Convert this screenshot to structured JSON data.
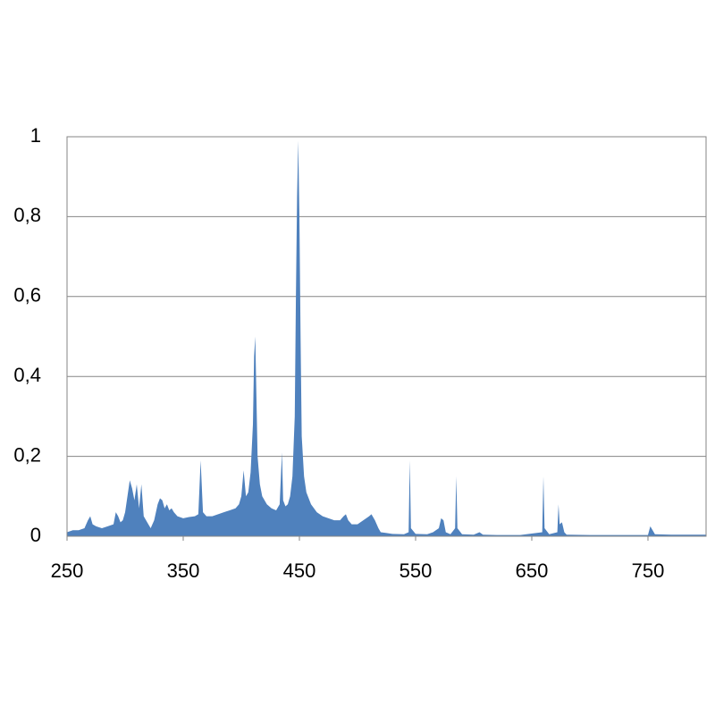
{
  "chart_data": {
    "type": "area",
    "x": [
      250,
      255,
      260,
      265,
      268,
      270,
      272,
      275,
      280,
      285,
      290,
      292,
      294,
      296,
      298,
      300,
      302,
      304,
      306,
      308,
      310,
      312,
      314,
      316,
      318,
      320,
      322,
      325,
      328,
      330,
      332,
      334,
      336,
      338,
      340,
      342,
      345,
      350,
      355,
      360,
      363,
      365,
      367,
      370,
      375,
      380,
      385,
      390,
      395,
      398,
      400,
      402,
      404,
      406,
      408,
      410,
      411,
      412,
      413,
      414,
      416,
      418,
      422,
      426,
      430,
      433,
      435,
      436,
      438,
      440,
      442,
      444,
      446,
      447,
      448,
      449,
      450,
      451,
      452,
      454,
      456,
      460,
      465,
      470,
      475,
      480,
      485,
      488,
      490,
      492,
      495,
      500,
      505,
      510,
      512,
      515,
      518,
      520,
      525,
      530,
      540,
      544,
      545,
      546,
      550,
      560,
      565,
      570,
      572,
      574,
      576,
      580,
      584,
      585,
      586,
      590,
      600,
      605,
      608,
      620,
      640,
      659,
      660,
      661,
      665,
      672,
      673,
      674,
      676,
      678,
      680,
      700,
      730,
      750,
      752,
      754,
      756,
      770,
      800
    ],
    "values": [
      0.01,
      0.015,
      0.015,
      0.02,
      0.04,
      0.05,
      0.03,
      0.025,
      0.02,
      0.025,
      0.03,
      0.06,
      0.05,
      0.035,
      0.04,
      0.06,
      0.1,
      0.14,
      0.12,
      0.09,
      0.13,
      0.07,
      0.13,
      0.05,
      0.04,
      0.03,
      0.02,
      0.04,
      0.08,
      0.095,
      0.09,
      0.07,
      0.08,
      0.065,
      0.07,
      0.06,
      0.05,
      0.045,
      0.048,
      0.05,
      0.055,
      0.19,
      0.06,
      0.05,
      0.05,
      0.055,
      0.06,
      0.065,
      0.07,
      0.08,
      0.1,
      0.165,
      0.1,
      0.11,
      0.16,
      0.28,
      0.45,
      0.5,
      0.35,
      0.2,
      0.13,
      0.1,
      0.08,
      0.07,
      0.065,
      0.08,
      0.21,
      0.09,
      0.075,
      0.08,
      0.1,
      0.15,
      0.3,
      0.6,
      0.85,
      0.99,
      0.8,
      0.5,
      0.25,
      0.15,
      0.11,
      0.08,
      0.06,
      0.05,
      0.045,
      0.04,
      0.04,
      0.05,
      0.055,
      0.04,
      0.03,
      0.03,
      0.04,
      0.05,
      0.055,
      0.04,
      0.02,
      0.01,
      0.008,
      0.006,
      0.005,
      0.01,
      0.19,
      0.02,
      0.006,
      0.005,
      0.01,
      0.02,
      0.045,
      0.04,
      0.01,
      0.005,
      0.02,
      0.15,
      0.02,
      0.005,
      0.004,
      0.01,
      0.004,
      0.003,
      0.003,
      0.01,
      0.15,
      0.02,
      0.005,
      0.01,
      0.08,
      0.03,
      0.035,
      0.01,
      0.004,
      0.003,
      0.003,
      0.003,
      0.025,
      0.015,
      0.005,
      0.004,
      0.004
    ],
    "color": "#4f81bd",
    "xlim": [
      250,
      800
    ],
    "xticks": [
      250,
      350,
      450,
      550,
      650,
      750
    ],
    "ylim": [
      0,
      1
    ],
    "yticks": [
      0,
      {
        "value": 0.2,
        "label": "0,2"
      },
      {
        "value": 0.4,
        "label": "0,4"
      },
      {
        "value": 0.6,
        "label": "0,6"
      },
      {
        "value": 0.8,
        "label": "0,8"
      },
      1
    ],
    "grid": true
  }
}
